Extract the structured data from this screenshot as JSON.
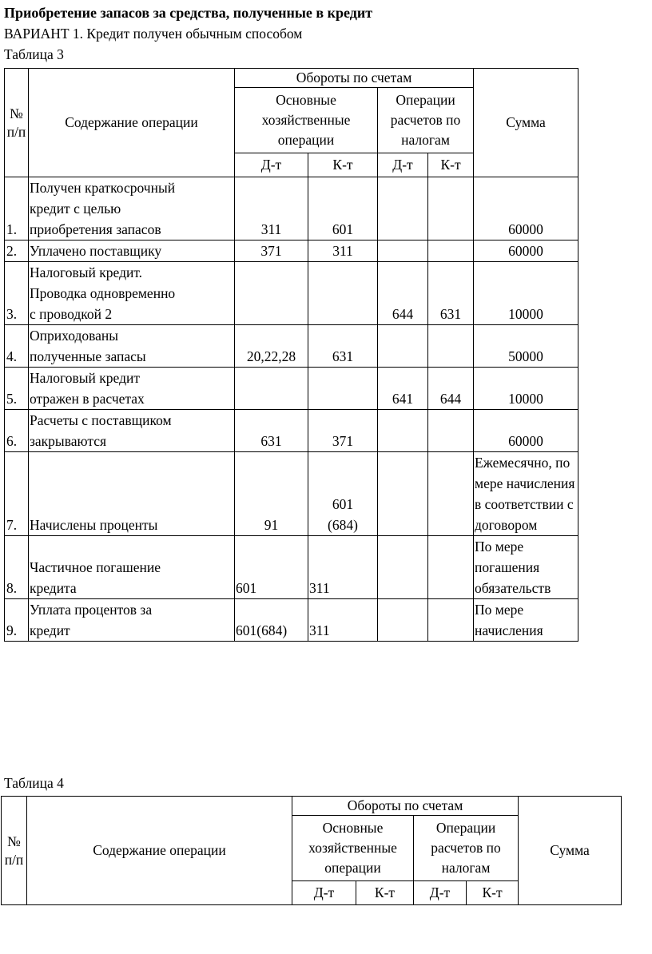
{
  "document": {
    "title": "Приобретение запасов за средства, полученные в кредит",
    "variant_line": "ВАРИАНТ 1. Кредит получен обычным способом",
    "table3_caption": "Таблица 3",
    "table4_caption": "Таблица 4"
  },
  "table_header": {
    "num": "№\nп/п",
    "operation": "Содержание операции",
    "turnovers": "Обороты по счетам",
    "main_ops": "Основные\nхозяйственные\nоперации",
    "tax_ops": "Операции\nрасчетов по\nналогам",
    "debit": "Д-т",
    "credit": "К-т",
    "sum": "Сумма"
  },
  "table3_rows": [
    {
      "num": "1.",
      "operation": "Получен краткосрочный\nкредит с целью\nприобретения запасов",
      "main_dt": "311",
      "main_kt": "601",
      "tax_dt": "",
      "tax_kt": "",
      "sum": "60000"
    },
    {
      "num": "2.",
      "operation": "Уплачено поставщику",
      "main_dt": "371",
      "main_kt": "311",
      "tax_dt": "",
      "tax_kt": "",
      "sum": "60000"
    },
    {
      "num": "3.",
      "operation": "Налоговый кредит.\nПроводка одновременно\nс проводкой 2",
      "main_dt": "",
      "main_kt": "",
      "tax_dt": "644",
      "tax_kt": "631",
      "sum": "10000"
    },
    {
      "num": "4.",
      "operation": "Оприходованы\nполученные запасы",
      "main_dt": "20,22,28",
      "main_kt": "631",
      "tax_dt": "",
      "tax_kt": "",
      "sum": "50000"
    },
    {
      "num": "5.",
      "operation": "Налоговый кредит\nотражен в расчетах",
      "main_dt": "",
      "main_kt": "",
      "tax_dt": "641",
      "tax_kt": "644",
      "sum": "10000"
    },
    {
      "num": "6.",
      "operation": "Расчеты с поставщиком\nзакрываются",
      "main_dt": "631",
      "main_kt": "371",
      "tax_dt": "",
      "tax_kt": "",
      "sum": "60000"
    },
    {
      "num": "7.",
      "operation": "Начислены проценты",
      "main_dt": "91",
      "main_kt": "601\n(684)",
      "tax_dt": "",
      "tax_kt": "",
      "sum": "Ежемесячно, по мере начисления в соответствии с договором"
    },
    {
      "num": "8.",
      "operation": "Частичное погашение\nкредита",
      "main_dt": "601",
      "main_kt": "311",
      "tax_dt": "",
      "tax_kt": "",
      "sum": "По мере погашения обязательств",
      "align_left": true
    },
    {
      "num": "9.",
      "operation": "Уплата процентов за\nкредит",
      "main_dt": "601(684)",
      "main_kt": "311",
      "tax_dt": "",
      "tax_kt": "",
      "sum": "По мере начисления",
      "align_left": true
    }
  ],
  "table4_rows": []
}
